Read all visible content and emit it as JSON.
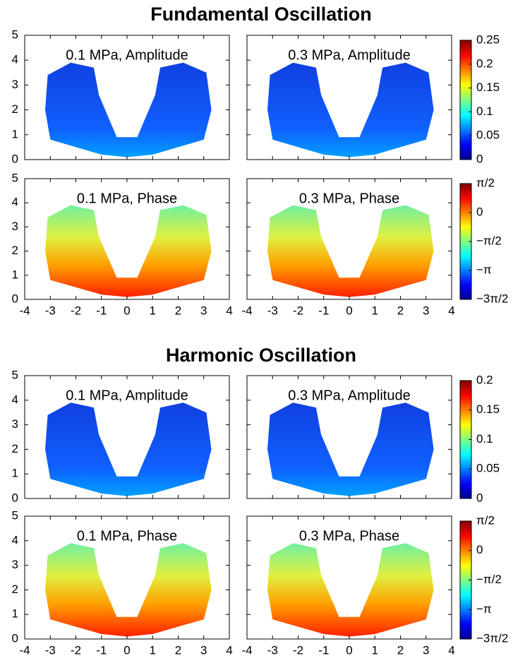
{
  "axes": {
    "xlim": [
      -4,
      4
    ],
    "xticks": [
      -4,
      -3,
      -2,
      -1,
      0,
      1,
      2,
      3,
      4
    ],
    "ylim": [
      0,
      5
    ],
    "yticks": [
      0,
      1,
      2,
      3,
      4,
      5
    ]
  },
  "sections": [
    {
      "title": "Fundamental Oscillation",
      "rows": [
        {
          "kind": "amplitude",
          "panels": [
            {
              "label": "0.1 MPa, Amplitude"
            },
            {
              "label": "0.3 MPa, Amplitude"
            }
          ],
          "colorbar": {
            "lim": [
              0,
              0.25
            ],
            "ticks": [
              0,
              0.05,
              0.1,
              0.15,
              0.2,
              0.25
            ]
          }
        },
        {
          "kind": "phase",
          "panels": [
            {
              "label": "0.1 MPa, Phase"
            },
            {
              "label": "0.3 MPa, Phase"
            }
          ],
          "colorbar": {
            "lim": [
              -4.712,
              1.571
            ],
            "ticks": [
              {
                "value": 1.571,
                "label": "π/2"
              },
              0,
              {
                "value": -1.571,
                "label": "−π/2"
              },
              {
                "value": -3.142,
                "label": "−π"
              },
              {
                "value": -4.712,
                "label": "−3π/2"
              }
            ]
          }
        }
      ]
    },
    {
      "title": "Harmonic Oscillation",
      "rows": [
        {
          "kind": "amplitude",
          "panels": [
            {
              "label": "0.1 MPa, Amplitude"
            },
            {
              "label": "0.3 MPa, Amplitude"
            }
          ],
          "colorbar": {
            "lim": [
              0,
              0.2
            ],
            "ticks": [
              0,
              0.05,
              0.1,
              0.15,
              0.2
            ]
          }
        },
        {
          "kind": "phase",
          "panels": [
            {
              "label": "0.1 MPa, Phase"
            },
            {
              "label": "0.3 MPa, Phase"
            }
          ],
          "colorbar": {
            "lim": [
              -4.712,
              1.571
            ],
            "ticks": [
              {
                "value": 1.571,
                "label": "π/2"
              },
              0,
              {
                "value": -1.571,
                "label": "−π/2"
              },
              {
                "value": -3.142,
                "label": "−π"
              },
              {
                "value": -4.712,
                "label": "−3π/2"
              }
            ]
          }
        }
      ]
    }
  ]
}
